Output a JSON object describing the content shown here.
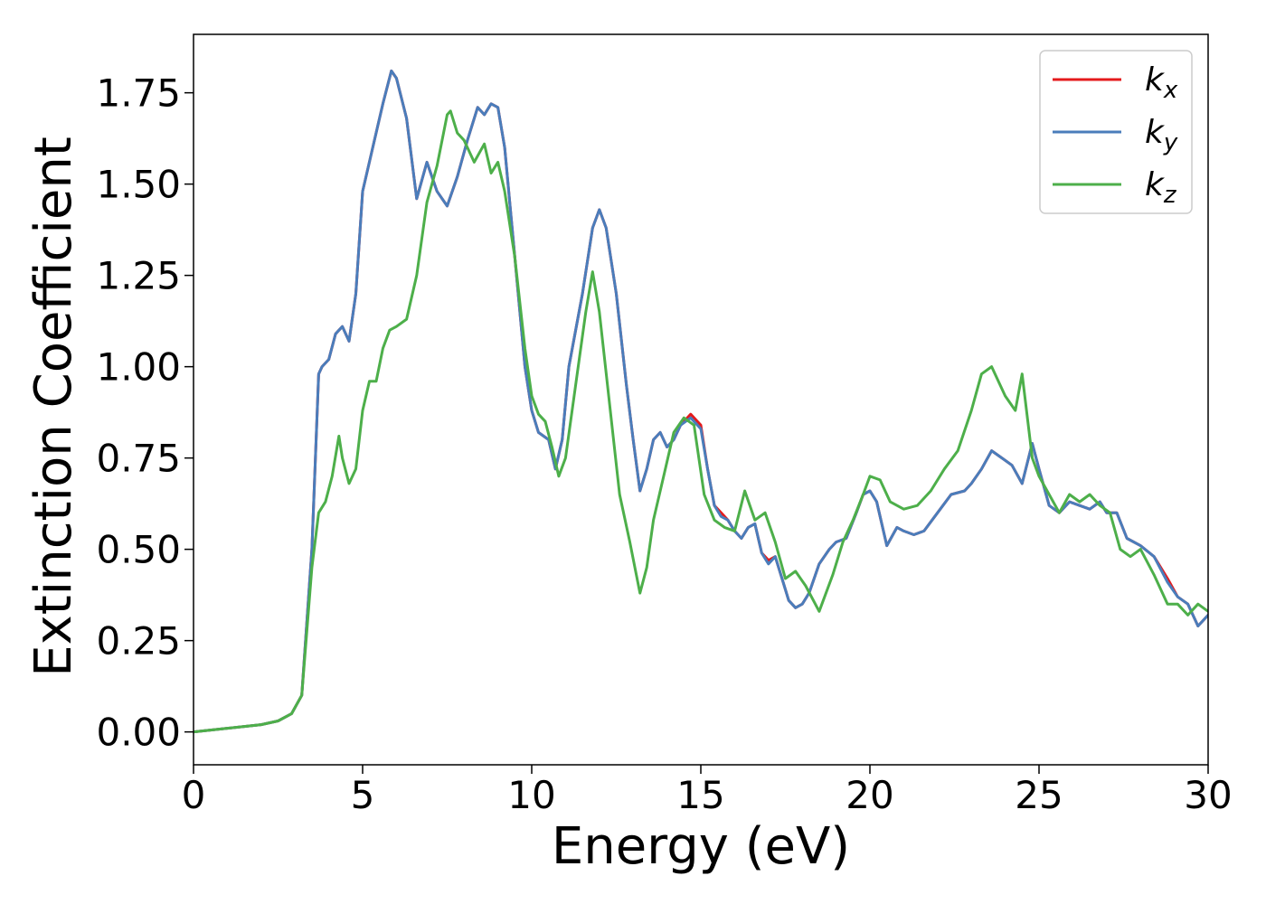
{
  "chart_data": {
    "type": "line",
    "xlabel": "Energy (eV)",
    "ylabel": "Extinction Coefficient",
    "xlim": [
      0,
      30
    ],
    "ylim": [
      -0.09,
      1.91
    ],
    "xticks": [
      0,
      5,
      10,
      15,
      20,
      25,
      30
    ],
    "xtick_labels": [
      "0",
      "5",
      "10",
      "15",
      "20",
      "25",
      "30"
    ],
    "yticks": [
      0.0,
      0.25,
      0.5,
      0.75,
      1.0,
      1.25,
      1.5,
      1.75
    ],
    "ytick_labels": [
      "0.00",
      "0.25",
      "0.50",
      "0.75",
      "1.00",
      "1.25",
      "1.50",
      "1.75"
    ],
    "grid": false,
    "legend_position": "top-right",
    "series": [
      {
        "name": "k",
        "subscript": "x",
        "color": "#e41a1c",
        "x": [
          0,
          1,
          2,
          2.5,
          2.9,
          3.2,
          3.5,
          3.7,
          3.8,
          4.0,
          4.2,
          4.4,
          4.6,
          4.8,
          5.0,
          5.3,
          5.6,
          5.85,
          6.0,
          6.3,
          6.6,
          6.9,
          7.2,
          7.5,
          7.8,
          8.1,
          8.4,
          8.6,
          8.8,
          9.0,
          9.2,
          9.5,
          9.8,
          10.0,
          10.2,
          10.5,
          10.7,
          10.9,
          11.1,
          11.3,
          11.5,
          11.8,
          12.0,
          12.2,
          12.5,
          12.8,
          13.0,
          13.2,
          13.4,
          13.6,
          13.8,
          14.0,
          14.2,
          14.4,
          14.7,
          15.0,
          15.2,
          15.4,
          15.6,
          15.8,
          16.0,
          16.2,
          16.4,
          16.6,
          16.8,
          17.0,
          17.2,
          17.4,
          17.6,
          17.8,
          18.0,
          18.2,
          18.5,
          18.8,
          19.0,
          19.3,
          19.6,
          19.8,
          20.0,
          20.2,
          20.5,
          20.8,
          21.0,
          21.3,
          21.6,
          22.0,
          22.4,
          22.8,
          23.0,
          23.3,
          23.6,
          23.9,
          24.2,
          24.5,
          24.8,
          25.0,
          25.3,
          25.6,
          25.9,
          26.2,
          26.5,
          26.8,
          27.0,
          27.3,
          27.6,
          28.0,
          28.4,
          28.8,
          29.1,
          29.4,
          29.7,
          30.0
        ],
        "y": [
          0.0,
          0.01,
          0.02,
          0.03,
          0.05,
          0.1,
          0.5,
          0.98,
          1.0,
          1.02,
          1.09,
          1.11,
          1.07,
          1.2,
          1.48,
          1.6,
          1.72,
          1.81,
          1.79,
          1.68,
          1.46,
          1.56,
          1.48,
          1.44,
          1.52,
          1.62,
          1.71,
          1.69,
          1.72,
          1.71,
          1.6,
          1.3,
          1.0,
          0.88,
          0.82,
          0.8,
          0.72,
          0.8,
          1.0,
          1.1,
          1.2,
          1.38,
          1.43,
          1.38,
          1.2,
          0.95,
          0.8,
          0.66,
          0.72,
          0.8,
          0.82,
          0.78,
          0.8,
          0.84,
          0.87,
          0.84,
          0.72,
          0.62,
          0.6,
          0.58,
          0.55,
          0.53,
          0.56,
          0.57,
          0.49,
          0.47,
          0.48,
          0.42,
          0.36,
          0.34,
          0.35,
          0.38,
          0.46,
          0.5,
          0.52,
          0.53,
          0.6,
          0.65,
          0.66,
          0.63,
          0.51,
          0.56,
          0.55,
          0.54,
          0.55,
          0.6,
          0.65,
          0.66,
          0.68,
          0.72,
          0.77,
          0.75,
          0.73,
          0.68,
          0.79,
          0.72,
          0.62,
          0.6,
          0.63,
          0.62,
          0.61,
          0.63,
          0.6,
          0.6,
          0.53,
          0.51,
          0.48,
          0.42,
          0.37,
          0.35,
          0.29,
          0.32
        ]
      },
      {
        "name": "k",
        "subscript": "y",
        "color": "#4a7dbb",
        "x": [
          0,
          1,
          2,
          2.5,
          2.9,
          3.2,
          3.5,
          3.7,
          3.8,
          4.0,
          4.2,
          4.4,
          4.6,
          4.8,
          5.0,
          5.3,
          5.6,
          5.85,
          6.0,
          6.3,
          6.6,
          6.9,
          7.2,
          7.5,
          7.8,
          8.1,
          8.4,
          8.6,
          8.8,
          9.0,
          9.2,
          9.5,
          9.8,
          10.0,
          10.2,
          10.5,
          10.7,
          10.9,
          11.1,
          11.3,
          11.5,
          11.8,
          12.0,
          12.2,
          12.5,
          12.8,
          13.0,
          13.2,
          13.4,
          13.6,
          13.8,
          14.0,
          14.2,
          14.4,
          14.7,
          15.0,
          15.2,
          15.4,
          15.6,
          15.8,
          16.0,
          16.2,
          16.4,
          16.6,
          16.8,
          17.0,
          17.2,
          17.4,
          17.6,
          17.8,
          18.0,
          18.2,
          18.5,
          18.8,
          19.0,
          19.3,
          19.6,
          19.8,
          20.0,
          20.2,
          20.5,
          20.8,
          21.0,
          21.3,
          21.6,
          22.0,
          22.4,
          22.8,
          23.0,
          23.3,
          23.6,
          23.9,
          24.2,
          24.5,
          24.8,
          25.0,
          25.3,
          25.6,
          25.9,
          26.2,
          26.5,
          26.8,
          27.0,
          27.3,
          27.6,
          28.0,
          28.4,
          28.8,
          29.1,
          29.4,
          29.7,
          30.0
        ],
        "y": [
          0.0,
          0.01,
          0.02,
          0.03,
          0.05,
          0.1,
          0.5,
          0.98,
          1.0,
          1.02,
          1.09,
          1.11,
          1.07,
          1.2,
          1.48,
          1.6,
          1.72,
          1.81,
          1.79,
          1.68,
          1.46,
          1.56,
          1.48,
          1.44,
          1.52,
          1.62,
          1.71,
          1.69,
          1.72,
          1.71,
          1.6,
          1.3,
          1.0,
          0.88,
          0.82,
          0.8,
          0.72,
          0.8,
          1.0,
          1.1,
          1.2,
          1.38,
          1.43,
          1.38,
          1.2,
          0.95,
          0.8,
          0.66,
          0.72,
          0.8,
          0.82,
          0.78,
          0.8,
          0.84,
          0.86,
          0.83,
          0.72,
          0.62,
          0.59,
          0.58,
          0.55,
          0.53,
          0.56,
          0.57,
          0.49,
          0.46,
          0.48,
          0.42,
          0.36,
          0.34,
          0.35,
          0.38,
          0.46,
          0.5,
          0.52,
          0.53,
          0.6,
          0.65,
          0.66,
          0.63,
          0.51,
          0.56,
          0.55,
          0.54,
          0.55,
          0.6,
          0.65,
          0.66,
          0.68,
          0.72,
          0.77,
          0.75,
          0.73,
          0.68,
          0.79,
          0.72,
          0.62,
          0.6,
          0.63,
          0.62,
          0.61,
          0.63,
          0.6,
          0.6,
          0.53,
          0.51,
          0.48,
          0.41,
          0.37,
          0.35,
          0.29,
          0.32
        ]
      },
      {
        "name": "k",
        "subscript": "z",
        "color": "#4daf4a",
        "x": [
          0,
          1,
          2,
          2.5,
          2.9,
          3.2,
          3.5,
          3.7,
          3.9,
          4.1,
          4.3,
          4.4,
          4.6,
          4.8,
          5.0,
          5.2,
          5.4,
          5.6,
          5.8,
          6.0,
          6.3,
          6.6,
          6.9,
          7.2,
          7.5,
          7.6,
          7.8,
          8.0,
          8.3,
          8.6,
          8.8,
          9.0,
          9.2,
          9.5,
          9.8,
          10.0,
          10.2,
          10.4,
          10.6,
          10.8,
          11.0,
          11.3,
          11.6,
          11.8,
          12.0,
          12.3,
          12.6,
          12.9,
          13.2,
          13.4,
          13.6,
          13.9,
          14.2,
          14.5,
          14.8,
          15.1,
          15.4,
          15.7,
          16.0,
          16.3,
          16.6,
          16.9,
          17.2,
          17.5,
          17.8,
          18.1,
          18.5,
          18.9,
          19.2,
          19.5,
          19.8,
          20.0,
          20.3,
          20.6,
          21.0,
          21.4,
          21.8,
          22.2,
          22.6,
          23.0,
          23.3,
          23.6,
          24.0,
          24.3,
          24.5,
          24.8,
          25.0,
          25.3,
          25.6,
          25.9,
          26.2,
          26.5,
          26.8,
          27.1,
          27.4,
          27.7,
          28.0,
          28.4,
          28.8,
          29.1,
          29.4,
          29.7,
          30.0
        ],
        "y": [
          0.0,
          0.01,
          0.02,
          0.03,
          0.05,
          0.1,
          0.45,
          0.6,
          0.63,
          0.7,
          0.81,
          0.75,
          0.68,
          0.72,
          0.88,
          0.96,
          0.96,
          1.05,
          1.1,
          1.11,
          1.13,
          1.25,
          1.45,
          1.55,
          1.69,
          1.7,
          1.64,
          1.62,
          1.56,
          1.61,
          1.53,
          1.56,
          1.48,
          1.3,
          1.05,
          0.92,
          0.87,
          0.85,
          0.78,
          0.7,
          0.75,
          0.95,
          1.15,
          1.26,
          1.15,
          0.9,
          0.65,
          0.52,
          0.38,
          0.45,
          0.58,
          0.7,
          0.82,
          0.86,
          0.84,
          0.65,
          0.58,
          0.56,
          0.55,
          0.66,
          0.58,
          0.6,
          0.52,
          0.42,
          0.44,
          0.4,
          0.33,
          0.43,
          0.52,
          0.58,
          0.65,
          0.7,
          0.69,
          0.63,
          0.61,
          0.62,
          0.66,
          0.72,
          0.77,
          0.88,
          0.98,
          1.0,
          0.92,
          0.88,
          0.98,
          0.75,
          0.7,
          0.65,
          0.6,
          0.65,
          0.63,
          0.65,
          0.62,
          0.6,
          0.5,
          0.48,
          0.5,
          0.43,
          0.35,
          0.35,
          0.32,
          0.35,
          0.33
        ]
      }
    ]
  }
}
